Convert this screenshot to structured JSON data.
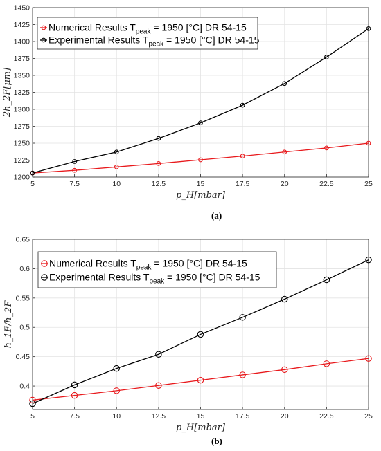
{
  "chart_data": [
    {
      "type": "line",
      "caption": "(a)",
      "xlabel": "p_H[mbar]",
      "ylabel": "2h_2F[μm]",
      "xlim": [
        5,
        25
      ],
      "ylim": [
        1200,
        1450
      ],
      "xticks": [
        5,
        7.5,
        10,
        12.5,
        15,
        17.5,
        20,
        22.5,
        25
      ],
      "yticks": [
        1200,
        1225,
        1250,
        1275,
        1300,
        1325,
        1350,
        1375,
        1400,
        1425,
        1450
      ],
      "grid": true,
      "legend_position": "top-left",
      "series": [
        {
          "name": "Numerical Results T_peak = 1950 [°C] DR 54-15",
          "legend_main": "Numerical Results T",
          "legend_sub": "peak",
          "legend_rest": " = 1950 [°C] DR 54-15",
          "color": "#e8191c",
          "marker": "circle",
          "x": [
            5,
            7.5,
            10,
            12.5,
            15,
            17.5,
            20,
            22.5,
            25
          ],
          "values": [
            1206,
            1210,
            1215,
            1220,
            1225.5,
            1231,
            1237,
            1243,
            1250
          ]
        },
        {
          "name": "Experimental Results T_peak = 1950 [°C] DR 54-15",
          "legend_main": "Experimental Results T",
          "legend_sub": "peak",
          "legend_rest": " = 1950 [°C] DR 54-15",
          "color": "#000000",
          "marker": "circle",
          "x": [
            5,
            7.5,
            10,
            12.5,
            15,
            17.5,
            20,
            22.5,
            25
          ],
          "values": [
            1206,
            1223,
            1237,
            1257,
            1280,
            1306,
            1338,
            1377,
            1419
          ]
        }
      ]
    },
    {
      "type": "line",
      "caption": "(b)",
      "xlabel": "p_H[mbar]",
      "ylabel": "h_1F/h_2F",
      "xlim": [
        5,
        25
      ],
      "ylim": [
        0.36,
        0.65
      ],
      "xticks": [
        5,
        7.5,
        10,
        12.5,
        15,
        17.5,
        20,
        22.5,
        25
      ],
      "yticks": [
        0.4,
        0.45,
        0.5,
        0.55,
        0.6,
        0.65
      ],
      "grid": true,
      "legend_position": "top-left",
      "series": [
        {
          "name": "Numerical Results T_peak = 1950 [°C] DR 54-15",
          "legend_main": "Numerical Results T",
          "legend_sub": "peak",
          "legend_rest": " = 1950 [°C] DR 54-15",
          "color": "#e8191c",
          "marker": "circle",
          "x": [
            5,
            7.5,
            10,
            12.5,
            15,
            17.5,
            20,
            22.5,
            25
          ],
          "values": [
            0.376,
            0.384,
            0.392,
            0.401,
            0.41,
            0.419,
            0.428,
            0.438,
            0.447
          ]
        },
        {
          "name": "Experimental Results T_peak = 1950 [°C] DR 54-15",
          "legend_main": "Experimental Results T",
          "legend_sub": "peak",
          "legend_rest": " = 1950 [°C] DR 54-15",
          "color": "#000000",
          "marker": "circle",
          "x": [
            5,
            7.5,
            10,
            12.5,
            15,
            17.5,
            20,
            22.5,
            25
          ],
          "values": [
            0.37,
            0.402,
            0.43,
            0.454,
            0.488,
            0.517,
            0.548,
            0.581,
            0.615
          ]
        }
      ]
    }
  ]
}
